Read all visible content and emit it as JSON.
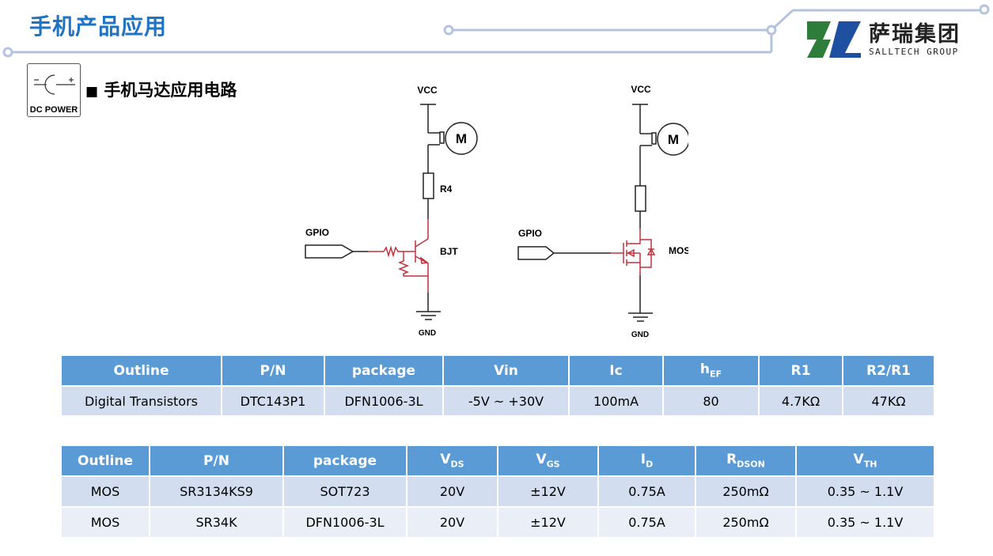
{
  "header": {
    "title": "手机产品应用",
    "logo": {
      "cn": "萨瑞集团",
      "en": "SALLTECH GROUP"
    }
  },
  "section": {
    "icon_label": "DC POWER",
    "bullet": "■",
    "title": "手机马达应用电路"
  },
  "circuits": {
    "bjt": {
      "vcc": "VCC",
      "resistor": "R4",
      "input": "GPIO",
      "device": "BJT",
      "gnd": "GND",
      "motor": "M"
    },
    "mos": {
      "vcc": "VCC",
      "input": "GPIO",
      "device": "MOS",
      "gnd": "GND",
      "motor": "M"
    }
  },
  "colors": {
    "accent": "#1F73C4",
    "header_bg": "#5B9BD5",
    "row_odd": "#D2DEEF",
    "row_even": "#EAEFF7",
    "circuit_red": "#C0323C"
  },
  "table1": {
    "headers": [
      {
        "main": "Outline"
      },
      {
        "main": "P/N"
      },
      {
        "main": "package"
      },
      {
        "main": "Vin"
      },
      {
        "main": "Ic"
      },
      {
        "main": "h",
        "sub": "EF"
      },
      {
        "main": "R1"
      },
      {
        "main": "R2/R1"
      }
    ],
    "rows": [
      [
        "Digital Transistors",
        "DTC143P1",
        "DFN1006-3L",
        "-5V ~ +30V",
        "100mA",
        "80",
        "4.7KΩ",
        "47KΩ"
      ]
    ]
  },
  "table2": {
    "headers": [
      {
        "main": "Outline"
      },
      {
        "main": "P/N"
      },
      {
        "main": "package"
      },
      {
        "main": "V",
        "sub": "DS"
      },
      {
        "main": "V",
        "sub": "GS"
      },
      {
        "main": "I",
        "sub": "D"
      },
      {
        "main": "R",
        "sub": "DSON"
      },
      {
        "main": "V",
        "sub": "TH"
      }
    ],
    "rows": [
      [
        "MOS",
        "SR3134KS9",
        "SOT723",
        "20V",
        "±12V",
        "0.75A",
        "250mΩ",
        "0.35 ~ 1.1V"
      ],
      [
        "MOS",
        "SR34K",
        "DFN1006-3L",
        "20V",
        "±12V",
        "0.75A",
        "250mΩ",
        "0.35 ~ 1.1V"
      ]
    ]
  }
}
